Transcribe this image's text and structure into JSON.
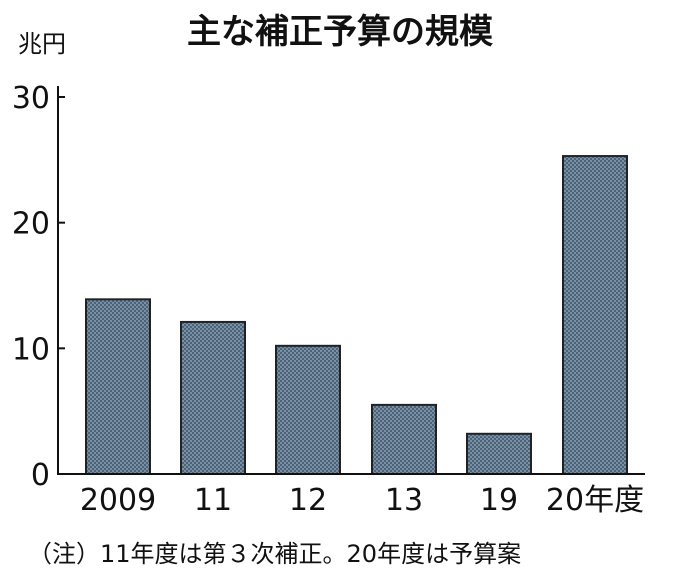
{
  "chart_data": {
    "type": "bar",
    "title": "主な補正予算の規模",
    "ylabel": "兆円",
    "xlabel": "",
    "categories": [
      "2009",
      "11",
      "12",
      "13",
      "19",
      "20年度"
    ],
    "values": [
      13.9,
      12.1,
      10.2,
      5.5,
      3.2,
      25.3
    ],
    "ylim": [
      0,
      30
    ],
    "yticks": [
      "0",
      "10",
      "20",
      "30"
    ],
    "grid": false,
    "note": "（注）11年度は第３次補正。20年度は予算案"
  },
  "colors": {
    "bar_fill": "#6f849b",
    "bar_pattern": "#4f6479",
    "axis": "#111111"
  }
}
